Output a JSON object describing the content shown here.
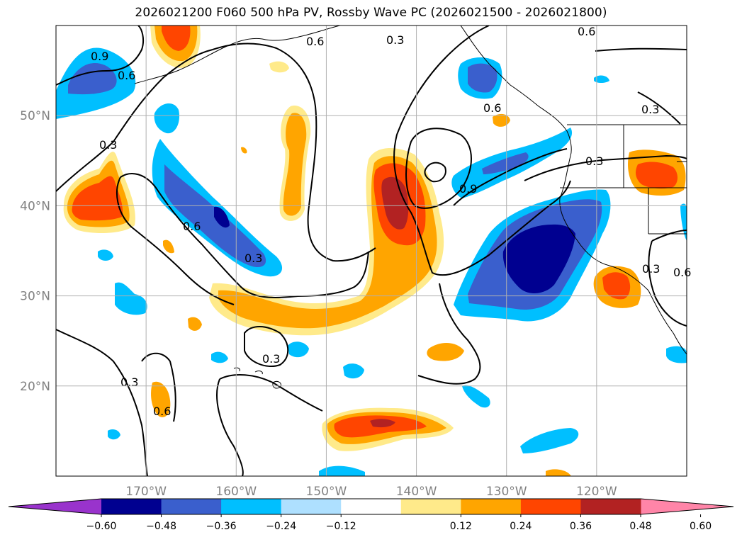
{
  "title": "2026021200 F060 500 hPa PV, Rossby Wave PC (2026021500 - 2026021800)",
  "map": {
    "projection": "lat-lon",
    "lon_range": [
      -180,
      -110
    ],
    "lat_range": [
      10,
      60
    ],
    "lat_ticks": [
      {
        "lat": 50,
        "label": "50°N"
      },
      {
        "lat": 40,
        "label": "40°N"
      },
      {
        "lat": 30,
        "label": "30°N"
      },
      {
        "lat": 20,
        "label": "20°N"
      }
    ],
    "lon_ticks": [
      {
        "lon": -170,
        "label": "170°W"
      },
      {
        "lon": -160,
        "label": "160°W"
      },
      {
        "lon": -150,
        "label": "150°W"
      },
      {
        "lon": -140,
        "label": "140°W"
      },
      {
        "lon": -130,
        "label": "130°W"
      },
      {
        "lon": -120,
        "label": "120°W"
      }
    ],
    "grid": true
  },
  "contour_labels": [
    "0.9",
    "0.6",
    "0.6",
    "0.3",
    "0.6",
    "0.6",
    "0.3",
    "0.3",
    "0.6",
    "0.3",
    "0.9",
    "0.3",
    "0.3",
    "0.3",
    "0.6",
    "0.3",
    "0.6"
  ],
  "colorbar": {
    "ticks": [
      "−0.60",
      "−0.48",
      "−0.36",
      "−0.24",
      "−0.12",
      "0.12",
      "0.24",
      "0.36",
      "0.48",
      "0.60"
    ],
    "colors": [
      "#9933cc",
      "#000090",
      "#3a5fcd",
      "#00bfff",
      "#aee0ff",
      "#ffffff",
      "#ffea8a",
      "#ffa500",
      "#ff4500",
      "#b22222",
      "#ff85a8"
    ],
    "extend": "both"
  },
  "colors": {
    "contour": "#000000",
    "grid": "#b0b0b0",
    "tick_label": "#808080"
  }
}
